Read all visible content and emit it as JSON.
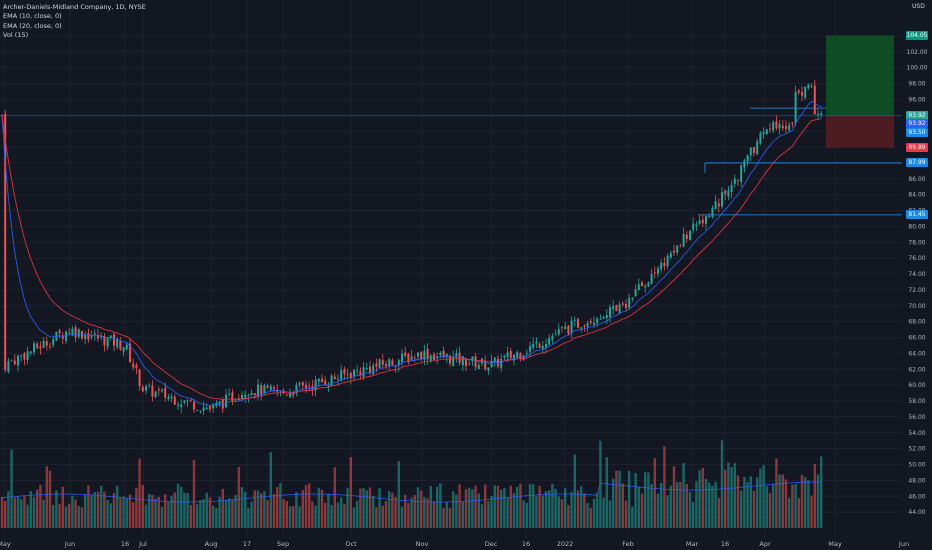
{
  "header": {
    "symbol_line": "Archer-Daniels-Midland Company, 1D, NYSE",
    "indicators": [
      "EMA (10, close, 0)",
      "EMA (20, close, 0)",
      "Vol (15)"
    ],
    "currency": "USD"
  },
  "colors": {
    "background": "#131722",
    "grid": "#1e2230",
    "up": "#26a69a",
    "down": "#ef5350",
    "ema10": "#2962ff",
    "ema20": "#f23645",
    "profit_zone": "#0e4d23",
    "loss_zone": "#4d1b22",
    "level_line": "#2196f3"
  },
  "price_tags": [
    {
      "id": "target",
      "text": "104.05",
      "price": 104.05,
      "color": "#089981"
    },
    {
      "id": "last",
      "text": "93.92",
      "price": 93.92,
      "color": "#26a69a"
    },
    {
      "id": "ema10",
      "text": "93.92",
      "price": 93.0,
      "color": "#2962ff"
    },
    {
      "id": "ema20",
      "text": "93.50",
      "price": 91.85,
      "color": "#1e88e5"
    },
    {
      "id": "stop",
      "text": "89.89",
      "price": 89.89,
      "color": "#f23645"
    },
    {
      "id": "level1",
      "text": "87.99",
      "price": 87.99,
      "color": "#1e88e5"
    },
    {
      "id": "level2",
      "text": "81.45",
      "price": 81.45,
      "color": "#1e88e5"
    }
  ],
  "chart_data": {
    "type": "candlestick",
    "title": "Archer-Daniels-Midland Company, 1D, NYSE",
    "price_axis": {
      "min": 42,
      "max": 106,
      "ticks": [
        44,
        46,
        48,
        50,
        52,
        54,
        56,
        58,
        60,
        62,
        64,
        66,
        68,
        70,
        72,
        74,
        76,
        78,
        80,
        82,
        84,
        86,
        88,
        90,
        92,
        94,
        96,
        98,
        100,
        102,
        104
      ]
    },
    "time_axis_labels": [
      "May",
      "Jun",
      "16",
      "Jul",
      "Aug",
      "17",
      "Sep",
      "Oct",
      "Nov",
      "Dec",
      "16",
      "2022",
      "Feb",
      "Mar",
      "16",
      "Apr",
      "May",
      "Jun"
    ],
    "price_anchors": [
      [
        "May",
        62.5
      ],
      [
        "Jun",
        67.0
      ],
      [
        "16",
        65.0
      ],
      [
        "Jul",
        59.5
      ],
      [
        "Aug",
        57.0
      ],
      [
        "17",
        59.5
      ],
      [
        "Sep",
        59.0
      ],
      [
        "Oct",
        61.5
      ],
      [
        "Nov",
        64.0
      ],
      [
        "Dec",
        62.5
      ],
      [
        "16",
        64.5
      ],
      [
        "2022",
        67.0
      ],
      [
        "Feb",
        70.5
      ],
      [
        "Mar",
        79.5
      ],
      [
        "16",
        84.0
      ],
      [
        "Apr",
        92.0
      ],
      [
        "May",
        94.0
      ]
    ],
    "series": [
      {
        "name": "EMA (10, close, 0)",
        "last": 93.92
      },
      {
        "name": "EMA (20, close, 0)",
        "last": 93.5
      },
      {
        "name": "Vol (15)"
      }
    ],
    "levels": [
      87.99,
      81.45
    ],
    "position": {
      "entry": 93.92,
      "target": 104.05,
      "stop": 89.89
    },
    "grid": true
  }
}
